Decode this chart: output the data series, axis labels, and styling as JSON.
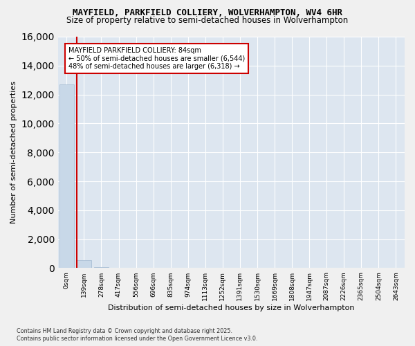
{
  "title": "MAYFIELD, PARKFIELD COLLIERY, WOLVERHAMPTON, WV4 6HR",
  "subtitle": "Size of property relative to semi-detached houses in Wolverhampton",
  "xlabel": "Distribution of semi-detached houses by size in Wolverhampton",
  "ylabel": "Number of semi-detached properties",
  "bar_values": [
    12700,
    530,
    80,
    40,
    25,
    15,
    10,
    8,
    6,
    5,
    4,
    3,
    3,
    2,
    2,
    2,
    1,
    1,
    1,
    1
  ],
  "bar_color": "#c8d8e8",
  "bar_edge_color": "#a0b8d0",
  "x_labels": [
    "0sqm",
    "139sqm",
    "278sqm",
    "417sqm",
    "556sqm",
    "696sqm",
    "835sqm",
    "974sqm",
    "1113sqm",
    "1252sqm",
    "1391sqm",
    "1530sqm",
    "1669sqm",
    "1808sqm",
    "1947sqm",
    "2087sqm",
    "2226sqm",
    "2365sqm",
    "2504sqm",
    "2643sqm"
  ],
  "ylim": [
    0,
    16000
  ],
  "yticks": [
    0,
    2000,
    4000,
    6000,
    8000,
    10000,
    12000,
    14000,
    16000
  ],
  "property_line_x": 0.58,
  "annotation_title": "MAYFIELD PARKFIELD COLLIERY: 84sqm",
  "annotation_line1": "← 50% of semi-detached houses are smaller (6,544)",
  "annotation_line2": "48% of semi-detached houses are larger (6,318) →",
  "annotation_color": "#cc0000",
  "background_color": "#dde6f0",
  "fig_background": "#f0f0f0",
  "footer_line1": "Contains HM Land Registry data © Crown copyright and database right 2025.",
  "footer_line2": "Contains public sector information licensed under the Open Government Licence v3.0."
}
